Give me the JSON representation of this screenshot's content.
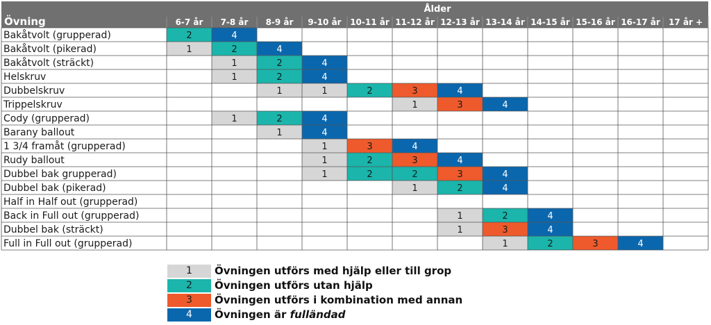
{
  "chart_data": {
    "type": "table",
    "header_group": "Ålder",
    "row_header": "Övning",
    "columns": [
      "6-7 år",
      "7-8 år",
      "8-9 år",
      "9-10 år",
      "10-11 år",
      "11-12 år",
      "12-13 år",
      "13-14 år",
      "14-15 år",
      "15-16 år",
      "16-17 år",
      "17 år +"
    ],
    "rows": [
      {
        "name": "Bakåtvolt (grupperad)",
        "levels": [
          2,
          4,
          null,
          null,
          null,
          null,
          null,
          null,
          null,
          null,
          null,
          null
        ]
      },
      {
        "name": "Bakåtvolt (pikerad)",
        "levels": [
          1,
          2,
          4,
          null,
          null,
          null,
          null,
          null,
          null,
          null,
          null,
          null
        ]
      },
      {
        "name": "Bakåtvolt (sträckt)",
        "levels": [
          null,
          1,
          2,
          4,
          null,
          null,
          null,
          null,
          null,
          null,
          null,
          null
        ]
      },
      {
        "name": "Helskruv",
        "levels": [
          null,
          1,
          2,
          4,
          null,
          null,
          null,
          null,
          null,
          null,
          null,
          null
        ]
      },
      {
        "name": "Dubbelskruv",
        "levels": [
          null,
          null,
          1,
          1,
          2,
          3,
          4,
          null,
          null,
          null,
          null,
          null
        ]
      },
      {
        "name": "Trippelskruv",
        "levels": [
          null,
          null,
          null,
          null,
          null,
          1,
          3,
          4,
          null,
          null,
          null,
          null
        ]
      },
      {
        "name": "Cody (grupperad)",
        "levels": [
          null,
          1,
          2,
          4,
          null,
          null,
          null,
          null,
          null,
          null,
          null,
          null
        ]
      },
      {
        "name": "Barany ballout",
        "levels": [
          null,
          null,
          1,
          4,
          null,
          null,
          null,
          null,
          null,
          null,
          null,
          null
        ]
      },
      {
        "name": "1 3/4 framåt (grupperad)",
        "levels": [
          null,
          null,
          null,
          1,
          3,
          4,
          null,
          null,
          null,
          null,
          null,
          null
        ]
      },
      {
        "name": "Rudy ballout",
        "levels": [
          null,
          null,
          null,
          1,
          2,
          3,
          4,
          null,
          null,
          null,
          null,
          null
        ]
      },
      {
        "name": "Dubbel bak grupperad)",
        "levels": [
          null,
          null,
          null,
          1,
          2,
          2,
          3,
          4,
          null,
          null,
          null,
          null
        ]
      },
      {
        "name": "Dubbel bak (pikerad)",
        "levels": [
          null,
          null,
          null,
          null,
          null,
          1,
          2,
          4,
          null,
          null,
          null,
          null
        ]
      },
      {
        "name": "Half in Half out (grupperad)",
        "levels": [
          null,
          null,
          null,
          null,
          null,
          null,
          null,
          null,
          null,
          null,
          null,
          null
        ]
      },
      {
        "name": "Back in Full out (grupperad)",
        "levels": [
          null,
          null,
          null,
          null,
          null,
          null,
          1,
          2,
          4,
          null,
          null,
          null
        ]
      },
      {
        "name": "Dubbel bak (sträckt)",
        "levels": [
          null,
          null,
          null,
          null,
          null,
          null,
          1,
          3,
          4,
          null,
          null,
          null
        ]
      },
      {
        "name": "Full in Full out (grupperad)",
        "levels": [
          null,
          null,
          null,
          null,
          null,
          null,
          null,
          1,
          2,
          3,
          4,
          null
        ]
      }
    ],
    "level_colors": {
      "1": "#d6d6d6",
      "2": "#1bb5ab",
      "3": "#ee5a2c",
      "4": "#0b67ad"
    },
    "header_color": "#707070",
    "legend": [
      {
        "level": "1",
        "text": "Övningen utförs med hjälp eller till grop"
      },
      {
        "level": "2",
        "text": "Övningen utförs utan hjälp"
      },
      {
        "level": "3",
        "text": "Övningen utförs i kombination med annan"
      },
      {
        "level": "4",
        "text": "Övningen är ",
        "text_italic": "fulländad"
      }
    ]
  }
}
